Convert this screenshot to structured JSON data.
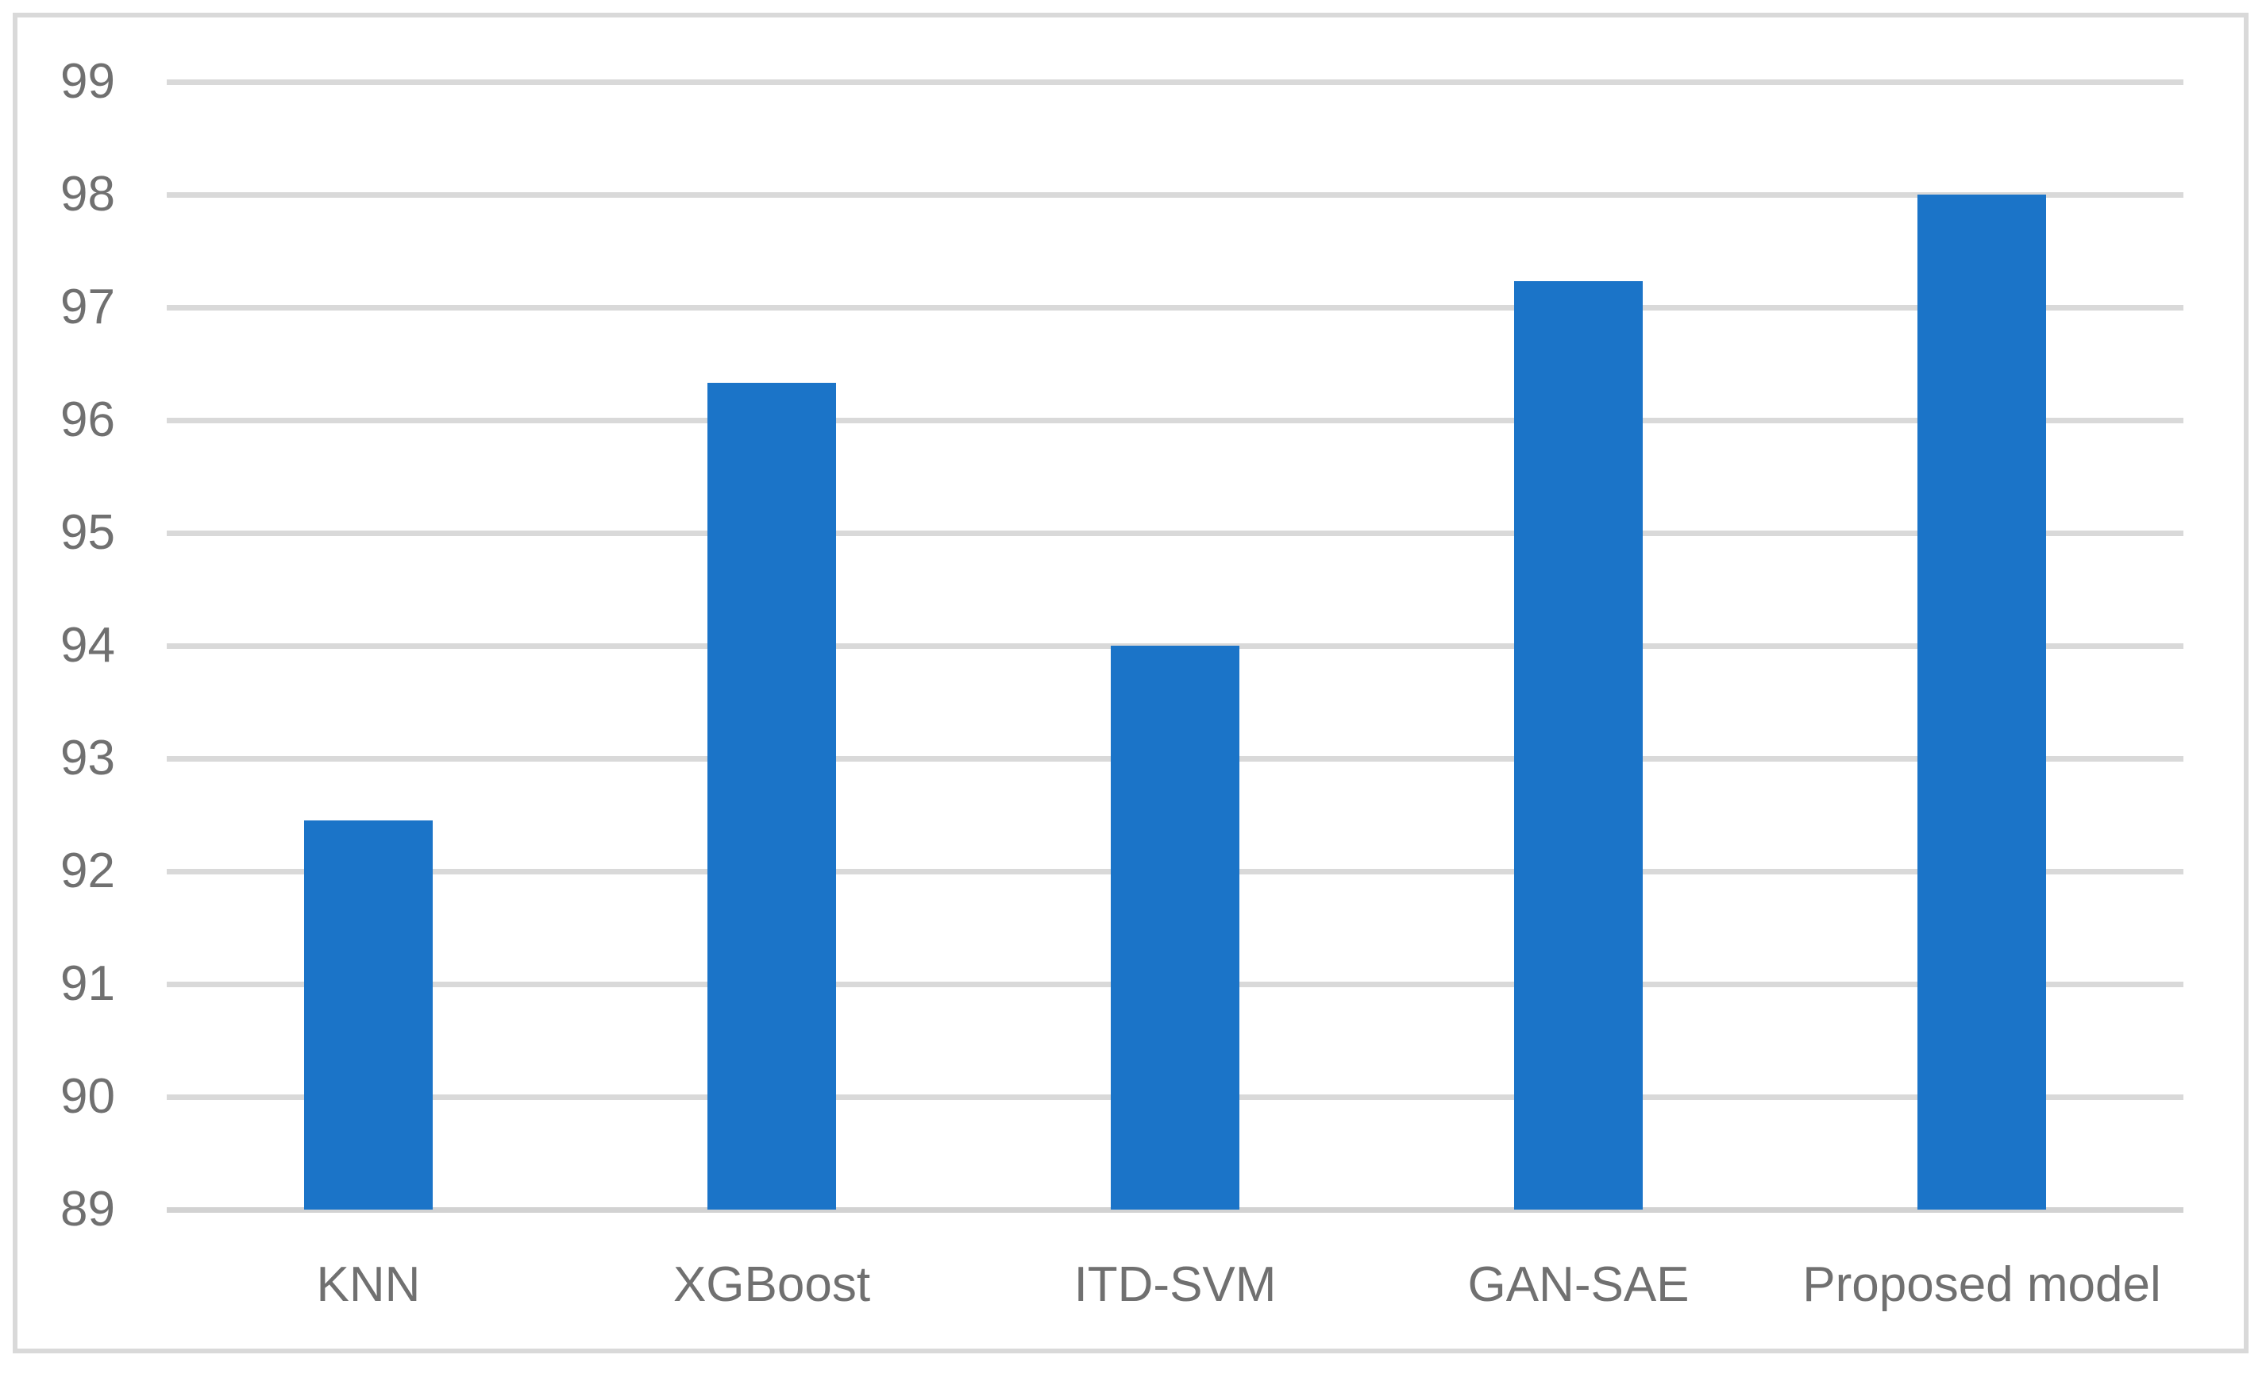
{
  "figure": {
    "background_color": "#FFFFFF",
    "frame_border_color": "#D9D9D9"
  },
  "chart_data": {
    "type": "bar",
    "title": "",
    "xlabel": "",
    "ylabel": "",
    "categories": [
      "KNN",
      "XGBoost",
      "ITD-SVM",
      "GAN-SAE",
      "Proposed model"
    ],
    "values": [
      92.45,
      96.33,
      94.0,
      97.23,
      98.0
    ],
    "ylim": [
      89,
      99
    ],
    "yticks": [
      89,
      90,
      91,
      92,
      93,
      94,
      95,
      96,
      97,
      98,
      99
    ],
    "grid": true,
    "legend": false,
    "bar_color": "#1B74C8",
    "gridline_color": "#D9D9D9",
    "axis_line_color": "#D2D2D2",
    "tick_label_color": "#707070"
  }
}
